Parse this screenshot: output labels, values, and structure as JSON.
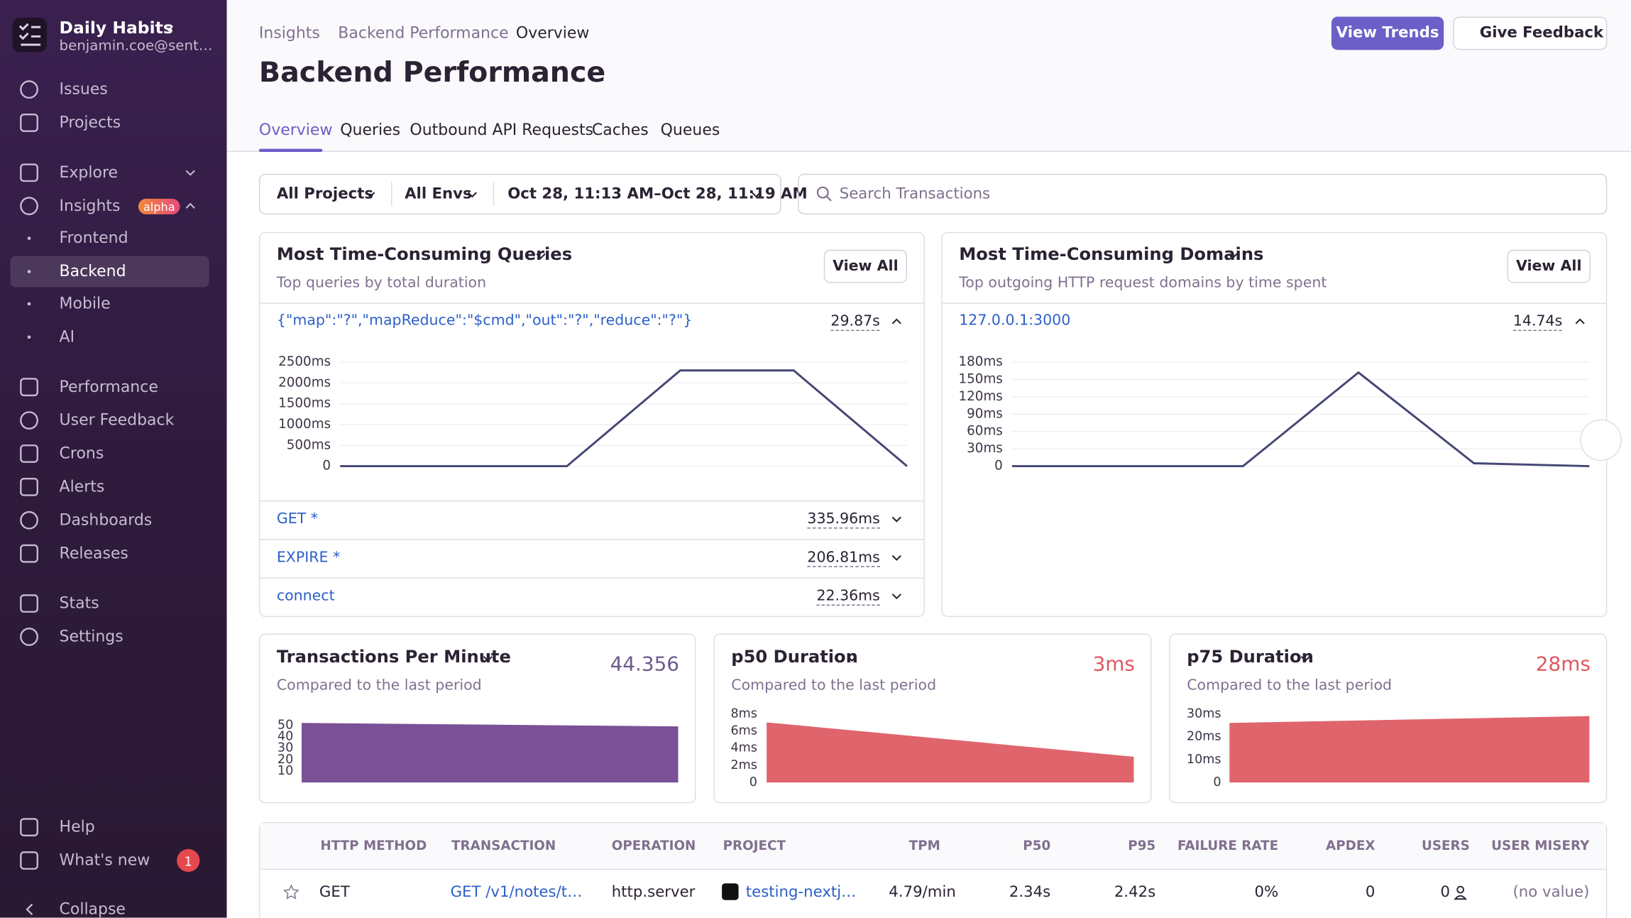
{
  "sidebar": {
    "org": "Daily Habits",
    "email": "benjamin.coe@sent…",
    "items": [
      "Issues",
      "Projects",
      "Explore",
      "Insights",
      "Frontend",
      "Backend",
      "Mobile",
      "AI",
      "Performance",
      "User Feedback",
      "Crons",
      "Alerts",
      "Dashboards",
      "Releases",
      "Stats",
      "Settings",
      "Help",
      "What's new",
      "Collapse"
    ],
    "insights_badge": "alpha",
    "whats_new_count": "1"
  },
  "header": {
    "breadcrumbs": [
      "Insights",
      "Backend Performance",
      "Overview"
    ],
    "title": "Backend Performance",
    "primary_button": "View Trends",
    "feedback_button": "Give Feedback",
    "tabs": [
      "Overview",
      "Queries",
      "Outbound API Requests",
      "Caches",
      "Queues"
    ]
  },
  "filters": {
    "project": "All Projects",
    "env": "All Envs",
    "date_range": "Oct 28, 11:13 AM–Oct 28, 11:19 AM",
    "search_placeholder": "Search Transactions"
  },
  "panels": {
    "queries": {
      "view_all": "View All",
      "top_label": "{\"map\":\"?\",\"mapReduce\":\"$cmd\",\"out\":\"?\",\"reduce\":\"?\"}",
      "top_value": "29.87s",
      "rows": [
        {
          "label": "GET *",
          "value": "335.96ms"
        },
        {
          "label": "EXPIRE *",
          "value": "206.81ms"
        },
        {
          "label": "connect",
          "value": "22.36ms"
        }
      ]
    },
    "domains": {
      "view_all": "View All",
      "top_label": "127.0.0.1:3000",
      "top_value": "14.74s"
    },
    "tpm": {
      "summary": "44.356"
    },
    "p50": {
      "summary": "3ms"
    },
    "p75": {
      "summary": "28ms"
    }
  },
  "chart_data": [
    {
      "type": "line",
      "title": "Most Time-Consuming Queries",
      "subtitle": "Top queries by total duration",
      "categories": [
        null,
        null,
        null,
        null,
        null,
        null
      ],
      "values": [
        0,
        0,
        0,
        2300,
        2300,
        0
      ],
      "color": "#444674",
      "ylim": [
        0,
        2500
      ],
      "yticks": [
        0,
        {
          "value": 500,
          "label": "500ms"
        },
        {
          "value": 1000,
          "label": "1000ms"
        },
        {
          "value": 1500,
          "label": "1500ms"
        },
        {
          "value": 2000,
          "label": "2000ms"
        },
        {
          "value": 2500,
          "label": "2500ms"
        }
      ],
      "grid": true
    },
    {
      "type": "line",
      "title": "Most Time-Consuming Domains",
      "subtitle": "Top outgoing HTTP request domains by time spent",
      "categories": [
        null,
        null,
        null,
        null,
        null,
        null
      ],
      "values": [
        0,
        0,
        0,
        162,
        5,
        0
      ],
      "color": "#444674",
      "ylim": [
        0,
        180
      ],
      "yticks": [
        0,
        {
          "value": 30,
          "label": "30ms"
        },
        {
          "value": 60,
          "label": "60ms"
        },
        {
          "value": 90,
          "label": "90ms"
        },
        {
          "value": 120,
          "label": "120ms"
        },
        {
          "value": 150,
          "label": "150ms"
        },
        {
          "value": 180,
          "label": "180ms"
        }
      ],
      "grid": true
    },
    {
      "type": "area",
      "title": "Transactions Per Minute",
      "subtitle": "Compared to the last period",
      "categories": [
        null,
        null
      ],
      "values": [
        52,
        49
      ],
      "color": "#7a5196",
      "ylim": [
        0,
        52
      ],
      "yticks": [
        10,
        20,
        30,
        40,
        50
      ],
      "grid": false
    },
    {
      "type": "area",
      "title": "p50 Duration",
      "subtitle": "Compared to the last period",
      "categories": [
        null,
        null
      ],
      "values": [
        7,
        3
      ],
      "color": "#e0646c",
      "ylim": [
        0,
        8
      ],
      "yticks": [
        0,
        {
          "value": 2,
          "label": "2ms"
        },
        {
          "value": 4,
          "label": "4ms"
        },
        {
          "value": 6,
          "label": "6ms"
        },
        {
          "value": 8,
          "label": "8ms"
        }
      ],
      "grid": false
    },
    {
      "type": "area",
      "title": "p75 Duration",
      "subtitle": "Compared to the last period",
      "categories": [
        null,
        null
      ],
      "values": [
        26,
        29
      ],
      "color": "#e0646c",
      "ylim": [
        0,
        30
      ],
      "yticks": [
        0,
        {
          "value": 10,
          "label": "10ms"
        },
        {
          "value": 20,
          "label": "20ms"
        },
        {
          "value": 30,
          "label": "30ms"
        }
      ],
      "grid": false
    }
  ],
  "table": {
    "columns": [
      "HTTP METHOD",
      "TRANSACTION",
      "OPERATION",
      "PROJECT",
      "TPM",
      "P50",
      "P95",
      "FAILURE RATE",
      "APDEX",
      "USERS",
      "USER MISERY"
    ],
    "rows": [
      [
        "GET",
        "GET /v1/notes/t…",
        "http.server",
        "testing-nextj…",
        "4.79/min",
        "2.34s",
        "2.42s",
        "0%",
        "0",
        "0",
        "(no value)"
      ]
    ]
  }
}
